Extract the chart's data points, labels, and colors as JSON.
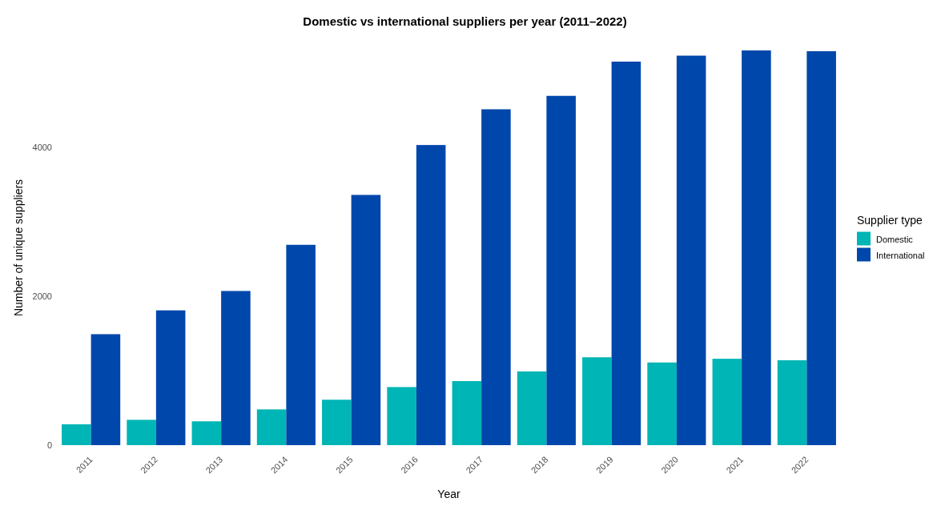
{
  "chart_data": {
    "type": "bar",
    "title": "Domestic vs international suppliers per year (2011–2022)",
    "xlabel": "Year",
    "ylabel": "Number of unique suppliers",
    "legend_title": "Supplier type",
    "categories": [
      "2011",
      "2012",
      "2013",
      "2014",
      "2015",
      "2016",
      "2017",
      "2018",
      "2019",
      "2020",
      "2021",
      "2022"
    ],
    "series": [
      {
        "name": "Domestic",
        "color": "#00b5b5",
        "values": [
          280,
          340,
          320,
          480,
          610,
          780,
          860,
          990,
          1180,
          1110,
          1160,
          1140
        ]
      },
      {
        "name": "International",
        "color": "#0047ab",
        "values": [
          1490,
          1810,
          2070,
          2690,
          3360,
          4030,
          4510,
          4690,
          5150,
          5230,
          5300,
          5290
        ]
      }
    ],
    "ylim": [
      0,
      5300
    ],
    "yticks": [
      0,
      2000,
      4000
    ],
    "grid": false,
    "legend": "right"
  }
}
